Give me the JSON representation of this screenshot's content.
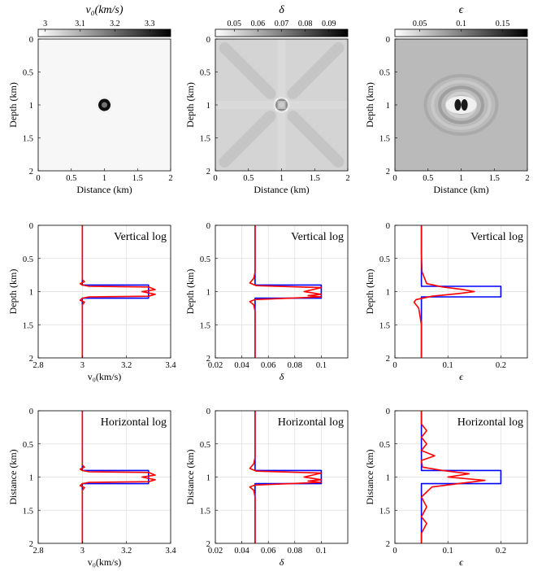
{
  "chart_data": [
    {
      "type": "heatmap",
      "panel": "map-v0",
      "title": "v₀(km/s)",
      "colorbar_ticks": [
        3,
        3.1,
        3.2,
        3.3
      ],
      "colorbar_range": [
        2.98,
        3.36
      ],
      "background": 0.03,
      "features": [
        {
          "x": 1.0,
          "z": 1.0,
          "kind": "ring",
          "amp": 1.0
        }
      ],
      "xlabel": "Distance (km)",
      "ylabel": "Depth (km)",
      "xlim": [
        0,
        2
      ],
      "ylim": [
        0,
        2
      ],
      "xticks": [
        0,
        0.5,
        1,
        1.5,
        2
      ],
      "yticks": [
        0,
        0.5,
        1,
        1.5,
        2
      ]
    },
    {
      "type": "heatmap",
      "panel": "map-delta",
      "title": "δ",
      "colorbar_ticks": [
        0.05,
        0.06,
        0.07,
        0.08,
        0.09
      ],
      "colorbar_range": [
        0.042,
        0.098
      ],
      "background": 0.17,
      "features": [
        {
          "x": 1.0,
          "z": 1.0,
          "kind": "ring",
          "amp": 1.0
        },
        {
          "x": 1.0,
          "z": 1.0,
          "kind": "cross",
          "amp": 0.1
        }
      ],
      "xlabel": "Distance (km)",
      "ylabel": "Depth (km)",
      "xlim": [
        0,
        2
      ],
      "ylim": [
        0,
        2
      ],
      "xticks": [
        0,
        0.5,
        1,
        1.5,
        2
      ],
      "yticks": [
        0,
        0.5,
        1,
        1.5,
        2
      ]
    },
    {
      "type": "heatmap",
      "panel": "map-epsilon",
      "title": "ϵ",
      "colorbar_ticks": [
        0.05,
        0.1,
        0.15
      ],
      "colorbar_range": [
        0.02,
        0.18
      ],
      "background": 0.27,
      "features": [
        {
          "x": 0.95,
          "z": 1.0,
          "kind": "blob",
          "amp": 1.0
        },
        {
          "x": 1.05,
          "z": 1.0,
          "kind": "blob",
          "amp": 1.0
        },
        {
          "x": 1.0,
          "z": 1.0,
          "kind": "bands",
          "amp": 0.2
        }
      ],
      "xlabel": "Distance (km)",
      "ylabel": "Depth (km)",
      "xlim": [
        0,
        2
      ],
      "ylim": [
        0,
        2
      ],
      "xticks": [
        0,
        0.5,
        1,
        1.5,
        2
      ],
      "yticks": [
        0,
        0.5,
        1,
        1.5,
        2
      ]
    },
    {
      "type": "line",
      "panel": "vlog-v0",
      "annotation": "Vertical log",
      "xlabel": "v₀(km/s)",
      "ylabel": "Depth (km)",
      "xlim": [
        2.8,
        3.4
      ],
      "ylim": [
        0,
        2
      ],
      "xticks": [
        2.8,
        3,
        3.2,
        3.4
      ],
      "yticks": [
        0,
        0.5,
        1,
        1.5,
        2
      ],
      "series": [
        {
          "color": "#0000ff",
          "x": [
            3,
            3,
            3.3,
            3.3,
            3,
            3
          ],
          "y": [
            0,
            0.9,
            0.9,
            1.1,
            1.1,
            2
          ]
        },
        {
          "color": "#ff0000",
          "x": [
            3,
            3,
            3.01,
            2.99,
            3,
            3.03,
            3.3,
            3.33,
            3.27,
            3.33,
            3.3,
            3.03,
            3,
            2.99,
            3.01,
            3,
            3
          ],
          "y": [
            0,
            0.82,
            0.85,
            0.88,
            0.9,
            0.92,
            0.93,
            0.97,
            1.0,
            1.04,
            1.07,
            1.08,
            1.1,
            1.13,
            1.16,
            1.2,
            2
          ]
        }
      ]
    },
    {
      "type": "line",
      "panel": "vlog-delta",
      "annotation": "Vertical log",
      "xlabel": "δ",
      "ylabel": "Depth (km)",
      "xlim": [
        0.02,
        0.12
      ],
      "ylim": [
        0,
        2
      ],
      "xticks": [
        0.02,
        0.04,
        0.06,
        0.08,
        0.1
      ],
      "yticks": [
        0,
        0.5,
        1,
        1.5,
        2
      ],
      "series": [
        {
          "color": "#0000ff",
          "x": [
            0.05,
            0.05,
            0.1,
            0.1,
            0.05,
            0.05
          ],
          "y": [
            0,
            0.9,
            0.9,
            1.1,
            1.1,
            2
          ]
        },
        {
          "color": "#ff0000",
          "x": [
            0.05,
            0.05,
            0.049,
            0.046,
            0.051,
            0.1,
            0.087,
            0.1,
            0.09,
            0.1,
            0.05,
            0.046,
            0.049,
            0.05,
            0.05
          ],
          "y": [
            0,
            0.7,
            0.8,
            0.87,
            0.91,
            0.94,
            1.0,
            1.04,
            1.06,
            1.08,
            1.12,
            1.15,
            1.2,
            1.3,
            2
          ]
        }
      ]
    },
    {
      "type": "line",
      "panel": "vlog-epsilon",
      "annotation": "Vertical log",
      "xlabel": "ϵ",
      "ylabel": "Depth (km)",
      "xlim": [
        0,
        0.25
      ],
      "ylim": [
        0,
        2
      ],
      "xticks": [
        0,
        0.1,
        0.2
      ],
      "yticks": [
        0,
        0.5,
        1,
        1.5,
        2
      ],
      "series": [
        {
          "color": "#0000ff",
          "x": [
            0.05,
            0.05,
            0.2,
            0.2,
            0.05,
            0.05
          ],
          "y": [
            0,
            0.92,
            0.92,
            1.08,
            1.08,
            2
          ]
        },
        {
          "color": "#ff0000",
          "x": [
            0.05,
            0.05,
            0.051,
            0.06,
            0.09,
            0.13,
            0.15,
            0.12,
            0.07,
            0.04,
            0.036,
            0.045,
            0.05,
            0.05
          ],
          "y": [
            0,
            0.4,
            0.7,
            0.88,
            0.93,
            0.97,
            1.0,
            1.03,
            1.07,
            1.12,
            1.16,
            1.25,
            1.5,
            2
          ]
        }
      ]
    },
    {
      "type": "line",
      "panel": "hlog-v0",
      "annotation": "Horizontal log",
      "xlabel": "v₀(km/s)",
      "ylabel": "Distance (km)",
      "xlim": [
        2.8,
        3.4
      ],
      "ylim": [
        0,
        2
      ],
      "xticks": [
        2.8,
        3,
        3.2,
        3.4
      ],
      "yticks": [
        0,
        0.5,
        1,
        1.5,
        2
      ],
      "series": [
        {
          "color": "#0000ff",
          "x": [
            3,
            3,
            3.3,
            3.3,
            3,
            3
          ],
          "y": [
            0,
            0.9,
            0.9,
            1.1,
            1.1,
            2
          ]
        },
        {
          "color": "#ff0000",
          "x": [
            3,
            3,
            3.01,
            2.99,
            3,
            3.03,
            3.3,
            3.33,
            3.27,
            3.33,
            3.3,
            3.03,
            3,
            2.99,
            3.01,
            3,
            3
          ],
          "y": [
            0,
            0.82,
            0.85,
            0.88,
            0.9,
            0.92,
            0.93,
            0.97,
            1.0,
            1.04,
            1.07,
            1.08,
            1.1,
            1.13,
            1.16,
            1.2,
            2
          ]
        }
      ]
    },
    {
      "type": "line",
      "panel": "hlog-delta",
      "annotation": "Horizontal log",
      "xlabel": "δ",
      "ylabel": "Distance (km)",
      "xlim": [
        0.02,
        0.12
      ],
      "ylim": [
        0,
        2
      ],
      "xticks": [
        0.02,
        0.04,
        0.06,
        0.08,
        0.1
      ],
      "yticks": [
        0,
        0.5,
        1,
        1.5,
        2
      ],
      "series": [
        {
          "color": "#0000ff",
          "x": [
            0.05,
            0.05,
            0.1,
            0.1,
            0.05,
            0.05
          ],
          "y": [
            0,
            0.9,
            0.9,
            1.1,
            1.1,
            2
          ]
        },
        {
          "color": "#ff0000",
          "x": [
            0.05,
            0.05,
            0.049,
            0.046,
            0.051,
            0.1,
            0.087,
            0.1,
            0.09,
            0.1,
            0.05,
            0.046,
            0.049,
            0.05,
            0.05
          ],
          "y": [
            0,
            0.7,
            0.8,
            0.87,
            0.91,
            0.94,
            1.0,
            1.04,
            1.06,
            1.08,
            1.12,
            1.15,
            1.2,
            1.3,
            2
          ]
        }
      ]
    },
    {
      "type": "line",
      "panel": "hlog-epsilon",
      "annotation": "Horizontal log",
      "xlabel": "ϵ",
      "ylabel": "Distance (km)",
      "xlim": [
        0,
        0.25
      ],
      "ylim": [
        0,
        2
      ],
      "xticks": [
        0,
        0.1,
        0.2
      ],
      "yticks": [
        0,
        0.5,
        1,
        1.5,
        2
      ],
      "series": [
        {
          "color": "#0000ff",
          "x": [
            0.05,
            0.05,
            0.2,
            0.2,
            0.05,
            0.05
          ],
          "y": [
            0,
            0.9,
            0.9,
            1.1,
            1.1,
            2
          ]
        },
        {
          "color": "#ff0000",
          "x": [
            0.05,
            0.05,
            0.06,
            0.05,
            0.06,
            0.05,
            0.075,
            0.05,
            0.052,
            0.09,
            0.14,
            0.1,
            0.17,
            0.12,
            0.07,
            0.05,
            0.06,
            0.05,
            0.06,
            0.05,
            0.05
          ],
          "y": [
            0,
            0.2,
            0.3,
            0.4,
            0.5,
            0.6,
            0.68,
            0.75,
            0.85,
            0.9,
            0.95,
            1.0,
            1.05,
            1.1,
            1.15,
            1.3,
            1.45,
            1.6,
            1.7,
            1.85,
            2
          ]
        }
      ]
    }
  ]
}
